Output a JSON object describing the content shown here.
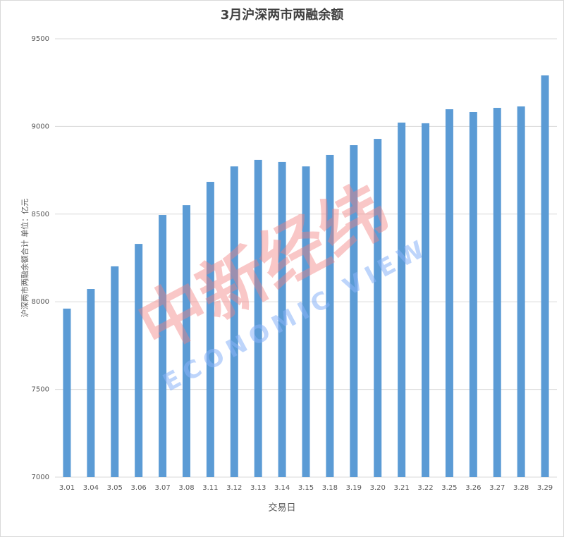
{
  "chart_data": {
    "type": "bar",
    "title": "3月沪深两市两融余额",
    "x_label": "交易日",
    "y_label": "沪深两市两融余额合计 单位：亿元",
    "categories": [
      "3.01",
      "3.04",
      "3.05",
      "3.06",
      "3.07",
      "3.08",
      "3.11",
      "3.12",
      "3.13",
      "3.14",
      "3.15",
      "3.18",
      "3.19",
      "3.20",
      "3.21",
      "3.22",
      "3.25",
      "3.26",
      "3.27",
      "3.28",
      "3.29"
    ],
    "values": [
      7961,
      8073,
      8202,
      8330,
      8495,
      8551,
      8684,
      8772,
      8809,
      8797,
      8772,
      8837,
      8893,
      8929,
      9022,
      9018,
      9098,
      9082,
      9106,
      9114,
      9291
    ],
    "color": "#5b9bd5",
    "ylim": [
      7000,
      9500
    ],
    "yticks": [
      7000,
      7500,
      8000,
      8500,
      9000,
      9500
    ],
    "grid": true,
    "watermark": {
      "logo": "中新经纬",
      "subtitle": "ECONOMIC VIEW"
    }
  }
}
